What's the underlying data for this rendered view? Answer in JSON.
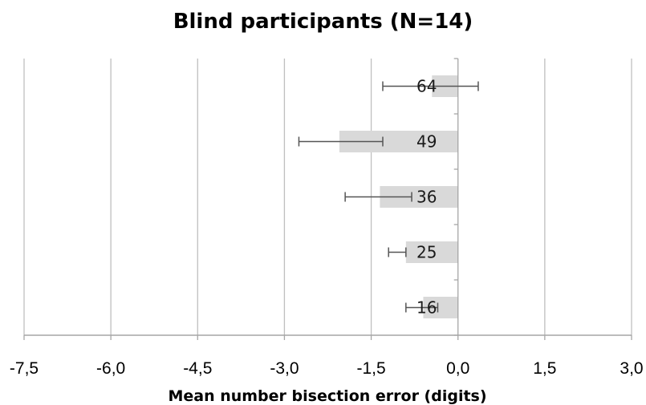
{
  "chart_data": {
    "type": "bar",
    "orientation": "horizontal",
    "title": "Blind participants (N=14)",
    "xlabel": "Mean number bisection error (digits)",
    "xlim": [
      -7.5,
      3.0
    ],
    "x_ticks": [
      -7.5,
      -6.0,
      -4.5,
      -3.0,
      -1.5,
      0.0,
      1.5,
      3.0
    ],
    "x_tick_labels": [
      "-7,5",
      "-6,0",
      "-4,5",
      "-3,0",
      "-1,5",
      "0,0",
      "1,5",
      "3,0"
    ],
    "categories": [
      "64",
      "49",
      "36",
      "25",
      "16"
    ],
    "values": [
      -0.45,
      -2.05,
      -1.35,
      -0.9,
      -0.6
    ],
    "error_low": [
      -1.3,
      -2.75,
      -1.95,
      -1.2,
      -0.9
    ],
    "error_high": [
      0.35,
      -1.3,
      -0.8,
      -0.9,
      -0.35
    ],
    "bar_color": "#d9d9d9",
    "grid": true
  }
}
